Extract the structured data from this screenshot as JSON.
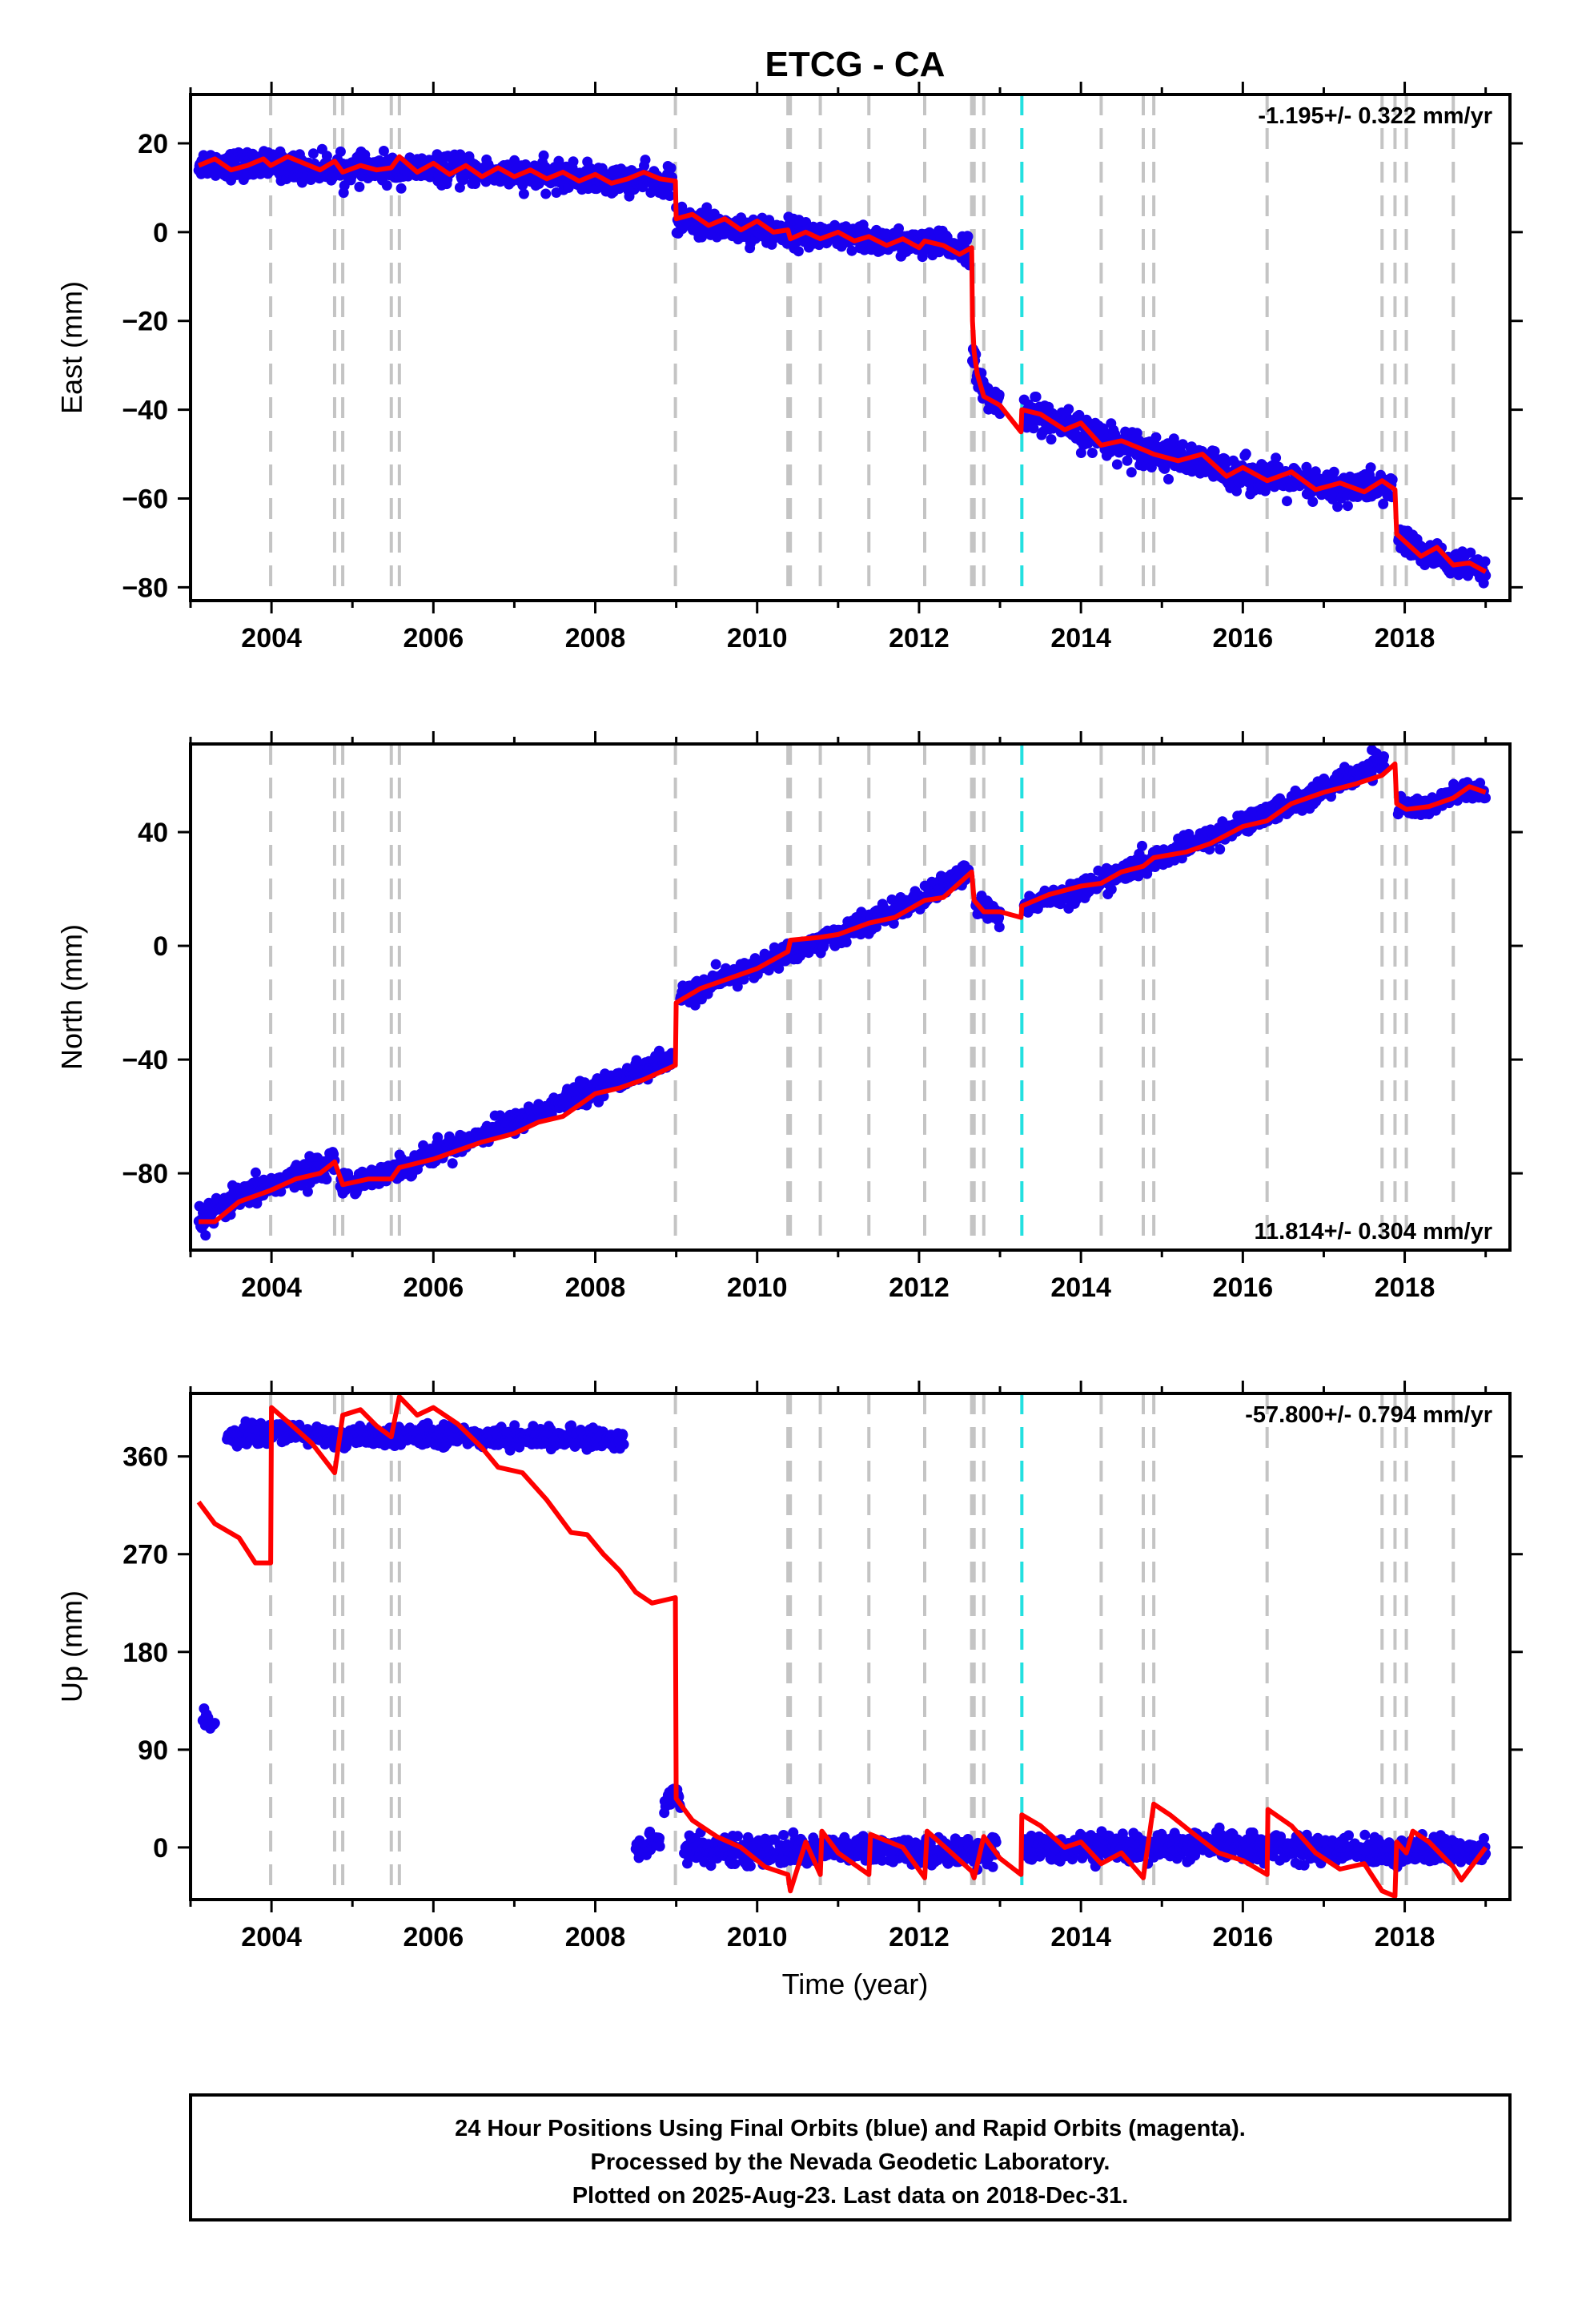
{
  "title": "ETCG - CA",
  "xlabel": "Time (year)",
  "caption": [
    "24 Hour Positions Using Final Orbits (blue) and Rapid Orbits (magenta).",
    "Processed by the Nevada Geodetic Laboratory.",
    "Plotted on 2025-Aug-23. Last data on 2018-Dec-31."
  ],
  "colors": {
    "final_orbits": "#1a00f0",
    "model_fit": "#ff0000",
    "equipment_change": "#c4c4c4",
    "earthquake": "#22e0e0",
    "frame": "#000000"
  },
  "chart_data": [
    {
      "type": "scatter",
      "component": "East",
      "ylabel": "East (mm)",
      "rate_label": "-1.195+/- 0.322 mm/yr",
      "rate_position": "top-right",
      "xlim": [
        2003.0,
        2019.3
      ],
      "ylim": [
        -83,
        31
      ],
      "xticks": [
        2004,
        2006,
        2008,
        2010,
        2012,
        2014,
        2016,
        2018
      ],
      "xtick_labels": [
        "2004",
        "2006",
        "2008",
        "2010",
        "2012",
        "2014",
        "2016",
        "2018"
      ],
      "yticks": [
        20,
        0,
        -20,
        -40,
        -60,
        -80
      ],
      "ytick_labels": [
        "20",
        "0",
        "−20",
        "−40",
        "−60",
        "−80"
      ],
      "vertical_lines_gray": [
        2003.99,
        2004.78,
        2004.88,
        2005.48,
        2005.58,
        2008.99,
        2010.38,
        2010.41,
        2010.78,
        2011.38,
        2012.07,
        2012.65,
        2012.68,
        2012.8,
        2014.25,
        2014.77,
        2014.9,
        2016.3,
        2017.72,
        2017.88,
        2018.02,
        2018.6
      ],
      "vertical_lines_cyan": [
        2013.27
      ],
      "data_segments": [
        {
          "x": [
            2003.1,
            2004.0,
            2005.0,
            2006.0,
            2007.0,
            2008.0,
            2008.95
          ],
          "y": [
            15.5,
            15.0,
            14.0,
            14.3,
            13.0,
            12.0,
            11.3
          ],
          "spread": 2.5
        },
        {
          "x": [
            2009.0,
            2010.0,
            2011.0,
            2012.0,
            2012.62
          ],
          "y": [
            2.5,
            0.5,
            -1.2,
            -2.8,
            -3.5
          ],
          "spread": 2.5
        },
        {
          "x": [
            2012.66,
            2012.72,
            2012.85,
            2013.0
          ],
          "y": [
            -26.0,
            -33.0,
            -37.0,
            -38.5
          ],
          "spread": 2.5
        },
        {
          "x": [
            2013.3,
            2014.0,
            2015.0,
            2016.0,
            2017.0,
            2017.85
          ],
          "y": [
            -40.0,
            -45.0,
            -50.0,
            -54.5,
            -57.5,
            -57.5
          ],
          "spread": 3.0
        },
        {
          "x": [
            2017.92,
            2018.2,
            2018.6,
            2019.0
          ],
          "y": [
            -69.0,
            -72.0,
            -74.5,
            -77.0
          ],
          "spread": 2.5
        }
      ],
      "model_fit": {
        "x": [
          2003.1,
          2003.3,
          2003.5,
          2003.7,
          2003.9,
          2003.99,
          2004.2,
          2004.4,
          2004.6,
          2004.78,
          2004.88,
          2005.1,
          2005.3,
          2005.48,
          2005.58,
          2005.8,
          2006.0,
          2006.2,
          2006.4,
          2006.6,
          2006.8,
          2007.0,
          2007.2,
          2007.4,
          2007.6,
          2007.8,
          2008.0,
          2008.2,
          2008.4,
          2008.6,
          2008.8,
          2008.99,
          2009.0,
          2009.2,
          2009.4,
          2009.6,
          2009.8,
          2010.0,
          2010.2,
          2010.38,
          2010.41,
          2010.6,
          2010.78,
          2011.0,
          2011.2,
          2011.38,
          2011.6,
          2011.8,
          2012.0,
          2012.07,
          2012.3,
          2012.5,
          2012.65,
          2012.66,
          2012.68,
          2012.72,
          2012.8,
          2012.9,
          2013.0,
          2013.26,
          2013.27,
          2013.5,
          2013.8,
          2014.0,
          2014.25,
          2014.5,
          2014.77,
          2014.9,
          2015.2,
          2015.5,
          2015.8,
          2016.0,
          2016.3,
          2016.6,
          2016.9,
          2017.2,
          2017.5,
          2017.72,
          2017.88,
          2017.9,
          2018.02,
          2018.2,
          2018.4,
          2018.6,
          2018.8,
          2019.0
        ],
        "y": [
          15.0,
          16.5,
          14.0,
          15.0,
          16.5,
          15.0,
          17.0,
          15.5,
          14.0,
          16.0,
          13.5,
          15.0,
          14.0,
          14.5,
          17.0,
          13.5,
          15.5,
          13.0,
          15.0,
          12.5,
          14.5,
          12.5,
          14.0,
          12.0,
          13.5,
          11.5,
          13.0,
          11.0,
          12.0,
          13.5,
          12.0,
          11.5,
          3.0,
          4.0,
          1.5,
          3.0,
          0.5,
          2.5,
          0.0,
          0.5,
          -1.5,
          0.0,
          -1.5,
          0.0,
          -2.0,
          -1.0,
          -3.0,
          -1.5,
          -3.5,
          -2.0,
          -3.0,
          -5.0,
          -3.5,
          -20.0,
          -27.0,
          -32.0,
          -37.0,
          -38.0,
          -39.0,
          -45.0,
          -40.0,
          -41.0,
          -44.5,
          -43.0,
          -48.0,
          -47.0,
          -49.0,
          -50.0,
          -51.5,
          -50.0,
          -55.0,
          -53.0,
          -56.0,
          -54.0,
          -58.0,
          -56.5,
          -58.5,
          -56.0,
          -58.0,
          -68.0,
          -70.0,
          -73.0,
          -71.0,
          -75.0,
          -74.5,
          -76.5
        ]
      }
    },
    {
      "type": "scatter",
      "component": "North",
      "ylabel": "North (mm)",
      "rate_label": "11.814+/- 0.304 mm/yr",
      "rate_position": "bottom-right",
      "xlim": [
        2003.0,
        2019.3
      ],
      "ylim": [
        -107,
        71
      ],
      "xticks": [
        2004,
        2006,
        2008,
        2010,
        2012,
        2014,
        2016,
        2018
      ],
      "xtick_labels": [
        "2004",
        "2006",
        "2008",
        "2010",
        "2012",
        "2014",
        "2016",
        "2018"
      ],
      "yticks": [
        40,
        0,
        -40,
        -80
      ],
      "ytick_labels": [
        "40",
        "0",
        "−40",
        "−80"
      ],
      "vertical_lines_gray": [
        2003.99,
        2004.78,
        2004.88,
        2005.48,
        2005.58,
        2008.99,
        2010.38,
        2010.41,
        2010.78,
        2011.38,
        2012.07,
        2012.65,
        2012.68,
        2012.8,
        2014.25,
        2014.77,
        2014.9,
        2016.3,
        2017.72,
        2017.88,
        2018.02,
        2018.6
      ],
      "vertical_lines_cyan": [
        2013.27
      ],
      "data_segments": [
        {
          "x": [
            2003.1,
            2003.5,
            2004.0,
            2004.4,
            2004.78
          ],
          "y": [
            -97.0,
            -90.0,
            -84.0,
            -80.0,
            -76.0
          ],
          "spread": 3.5
        },
        {
          "x": [
            2004.85,
            2005.5,
            2006.0,
            2007.0,
            2008.0,
            2008.95
          ],
          "y": [
            -84.0,
            -79.0,
            -73.0,
            -62.0,
            -50.0,
            -40.0
          ],
          "spread": 3.0
        },
        {
          "x": [
            2009.05,
            2010.0,
            2011.0,
            2012.0,
            2012.62
          ],
          "y": [
            -18.0,
            -7.0,
            4.0,
            16.0,
            26.0
          ],
          "spread": 3.0
        },
        {
          "x": [
            2012.7,
            2012.85,
            2013.0
          ],
          "y": [
            15.0,
            12.0,
            10.0
          ],
          "spread": 3.0
        },
        {
          "x": [
            2013.3,
            2014.0,
            2015.0,
            2016.0,
            2017.0,
            2017.75
          ],
          "y": [
            14.0,
            20.0,
            31.0,
            43.0,
            55.0,
            65.0
          ],
          "spread": 3.0
        },
        {
          "x": [
            2017.92,
            2018.3,
            2018.7,
            2019.0
          ],
          "y": [
            49.0,
            49.0,
            54.0,
            54.0
          ],
          "spread": 3.0
        }
      ],
      "model_fit": {
        "x": [
          2003.1,
          2003.3,
          2003.6,
          2003.99,
          2004.3,
          2004.6,
          2004.78,
          2004.88,
          2005.2,
          2005.48,
          2005.58,
          2006.0,
          2006.3,
          2006.6,
          2007.0,
          2007.3,
          2007.6,
          2008.0,
          2008.3,
          2008.6,
          2008.99,
          2009.0,
          2009.3,
          2009.6,
          2010.0,
          2010.38,
          2010.41,
          2010.78,
          2011.0,
          2011.38,
          2011.7,
          2012.07,
          2012.3,
          2012.65,
          2012.68,
          2012.8,
          2013.0,
          2013.26,
          2013.27,
          2013.6,
          2014.0,
          2014.25,
          2014.5,
          2014.77,
          2014.9,
          2015.3,
          2015.6,
          2016.0,
          2016.3,
          2016.6,
          2017.0,
          2017.4,
          2017.72,
          2017.88,
          2017.9,
          2018.02,
          2018.3,
          2018.6,
          2018.8,
          2019.0
        ],
        "y": [
          -97.0,
          -97.0,
          -90.0,
          -86.0,
          -82.0,
          -80.0,
          -76.0,
          -84.0,
          -82.0,
          -82.0,
          -78.0,
          -75.0,
          -72.0,
          -69.0,
          -66.0,
          -62.0,
          -60.0,
          -52.0,
          -50.0,
          -47.0,
          -42.0,
          -20.0,
          -15.0,
          -12.0,
          -8.0,
          -2.0,
          2.0,
          3.0,
          4.0,
          8.0,
          10.0,
          16.0,
          17.0,
          26.0,
          16.0,
          12.0,
          12.0,
          10.0,
          14.0,
          18.0,
          21.0,
          22.0,
          26.0,
          28.0,
          31.0,
          33.0,
          36.0,
          42.0,
          44.0,
          50.0,
          54.0,
          57.0,
          60.0,
          64.0,
          50.0,
          48.0,
          49.0,
          52.0,
          56.0,
          54.0
        ]
      }
    },
    {
      "type": "scatter",
      "component": "Up",
      "ylabel": "Up (mm)",
      "rate_label": "-57.800+/- 0.794 mm/yr",
      "rate_position": "top-right",
      "xlim": [
        2003.0,
        2019.3
      ],
      "ylim": [
        -48,
        418
      ],
      "xticks": [
        2004,
        2006,
        2008,
        2010,
        2012,
        2014,
        2016,
        2018
      ],
      "xtick_labels": [
        "2004",
        "2006",
        "2008",
        "2010",
        "2012",
        "2014",
        "2016",
        "2018"
      ],
      "yticks": [
        360,
        270,
        180,
        90,
        0
      ],
      "ytick_labels": [
        "360",
        "270",
        "180",
        "90",
        "0"
      ],
      "vertical_lines_gray": [
        2003.99,
        2004.78,
        2004.88,
        2005.48,
        2005.58,
        2008.99,
        2010.38,
        2010.41,
        2010.78,
        2011.38,
        2012.07,
        2012.65,
        2012.68,
        2012.8,
        2014.25,
        2014.77,
        2014.9,
        2016.3,
        2017.72,
        2017.88,
        2018.02,
        2018.6
      ],
      "vertical_lines_cyan": [
        2013.27
      ],
      "data_segments": [
        {
          "x": [
            2003.15,
            2003.3
          ],
          "y": [
            118.0,
            115.0
          ],
          "spread": 7.0
        },
        {
          "x": [
            2003.45,
            2004.0,
            2005.0,
            2006.0,
            2007.0,
            2008.0,
            2008.35
          ],
          "y": [
            378.0,
            382.0,
            377.0,
            380.0,
            377.0,
            377.0,
            376.0
          ],
          "spread": 7.0
        },
        {
          "x": [
            2008.5,
            2008.8
          ],
          "y": [
            -5.0,
            8.0
          ],
          "spread": 10.0
        },
        {
          "x": [
            2008.85,
            2009.0,
            2009.05
          ],
          "y": [
            40.0,
            50.0,
            40.0
          ],
          "spread": 8.0
        },
        {
          "x": [
            2009.1,
            2010.0,
            2011.0,
            2012.0,
            2012.95
          ],
          "y": [
            0.0,
            -4.0,
            -2.0,
            -5.0,
            -2.0
          ],
          "spread": 10.0
        },
        {
          "x": [
            2013.3,
            2014.0,
            2015.0,
            2016.0,
            2017.0,
            2018.0,
            2019.0
          ],
          "y": [
            -2.0,
            0.0,
            0.0,
            2.0,
            -3.0,
            -4.0,
            -2.0
          ],
          "spread": 10.0
        }
      ],
      "model_fit": {
        "x": [
          2003.1,
          2003.3,
          2003.6,
          2003.8,
          2003.99,
          2004.0,
          2004.2,
          2004.5,
          2004.78,
          2004.88,
          2005.1,
          2005.3,
          2005.48,
          2005.58,
          2005.8,
          2006.0,
          2006.3,
          2006.6,
          2006.8,
          2007.1,
          2007.4,
          2007.7,
          2007.9,
          2008.1,
          2008.3,
          2008.5,
          2008.7,
          2008.99,
          2009.0,
          2009.2,
          2009.5,
          2009.8,
          2010.1,
          2010.38,
          2010.41,
          2010.6,
          2010.78,
          2010.8,
          2011.0,
          2011.38,
          2011.4,
          2011.8,
          2012.07,
          2012.1,
          2012.4,
          2012.65,
          2012.68,
          2012.8,
          2013.0,
          2013.26,
          2013.27,
          2013.5,
          2013.8,
          2014.0,
          2014.25,
          2014.5,
          2014.77,
          2014.9,
          2015.1,
          2015.4,
          2015.7,
          2016.0,
          2016.3,
          2016.31,
          2016.6,
          2016.9,
          2017.2,
          2017.5,
          2017.72,
          2017.88,
          2017.9,
          2018.02,
          2018.1,
          2018.3,
          2018.6,
          2018.7,
          2019.0
        ],
        "y": [
          318.0,
          298.0,
          285.0,
          262.0,
          262.0,
          405.0,
          392.0,
          372.0,
          345.0,
          398.0,
          403.0,
          388.0,
          378.0,
          415.0,
          398.0,
          405.0,
          390.0,
          368.0,
          350.0,
          345.0,
          320.0,
          290.0,
          288.0,
          270.0,
          255.0,
          235.0,
          225.0,
          230.0,
          45.0,
          25.0,
          10.0,
          0.0,
          -18.0,
          -25.0,
          -40.0,
          5.0,
          -25.0,
          15.0,
          -5.0,
          -25.0,
          12.0,
          0.0,
          -28.0,
          15.0,
          -5.0,
          -22.0,
          -28.0,
          10.0,
          -10.0,
          -25.0,
          30.0,
          20.0,
          0.0,
          5.0,
          -15.0,
          -5.0,
          -28.0,
          40.0,
          30.0,
          12.0,
          -5.0,
          -12.0,
          -25.0,
          35.0,
          20.0,
          -5.0,
          -20.0,
          -15.0,
          -40.0,
          -45.0,
          5.0,
          -5.0,
          15.0,
          5.0,
          -18.0,
          -30.0,
          0.0
        ]
      }
    }
  ]
}
